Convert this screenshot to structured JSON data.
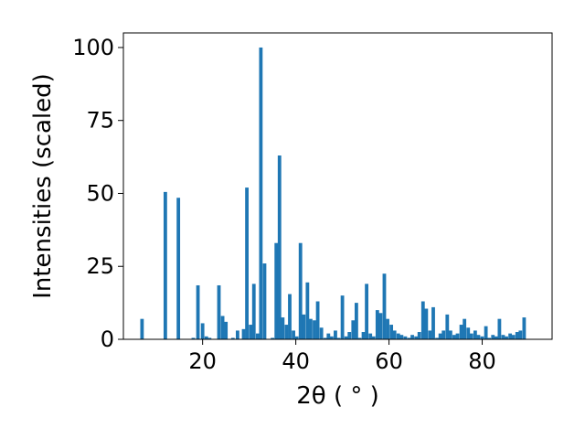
{
  "chart_data": {
    "type": "bar",
    "xlabel": "2θ ( ° )",
    "ylabel": "Intensities (scaled)",
    "xlim": [
      3,
      95
    ],
    "ylim": [
      0,
      105
    ],
    "xticks": [
      20,
      40,
      60,
      80
    ],
    "yticks": [
      0,
      25,
      50,
      75,
      100
    ],
    "bar_color": "#1f77b4",
    "bar_width": 0.75,
    "x": [
      7.0,
      12.0,
      14.8,
      18.0,
      19.0,
      20.0,
      20.8,
      21.5,
      23.5,
      24.3,
      25.0,
      26.5,
      27.5,
      28.8,
      29.5,
      30.3,
      31.0,
      31.8,
      32.5,
      33.3,
      35.0,
      35.8,
      36.5,
      37.2,
      38.0,
      38.7,
      39.5,
      40.2,
      41.0,
      41.7,
      42.5,
      43.2,
      44.0,
      44.7,
      45.5,
      46.3,
      47.0,
      47.7,
      48.5,
      49.2,
      50.0,
      50.8,
      51.5,
      52.3,
      53.0,
      53.7,
      54.5,
      55.2,
      56.0,
      56.7,
      57.5,
      58.2,
      59.0,
      59.7,
      60.5,
      61.2,
      62.0,
      62.7,
      63.5,
      64.3,
      65.0,
      65.8,
      66.5,
      67.3,
      68.0,
      68.8,
      69.5,
      70.3,
      71.0,
      71.7,
      72.5,
      73.2,
      74.0,
      74.7,
      75.5,
      76.2,
      77.0,
      77.7,
      78.5,
      79.2,
      80.0,
      80.8,
      81.5,
      82.3,
      83.0,
      83.7,
      84.5,
      85.2,
      86.0,
      86.7,
      87.5,
      88.2,
      89.0
    ],
    "values": [
      7,
      50.5,
      48.5,
      0.5,
      18.5,
      5.5,
      1,
      0.5,
      18.5,
      8,
      6,
      0.5,
      3,
      3.5,
      52,
      5,
      19,
      2,
      100,
      26,
      0.5,
      33,
      63,
      7.5,
      5,
      15.5,
      3,
      1,
      33,
      8.5,
      19.5,
      7,
      6.5,
      13,
      4,
      0.5,
      2,
      1,
      3,
      0.5,
      15,
      1,
      2.5,
      6.5,
      12.5,
      0.5,
      2.5,
      19,
      2,
      1,
      10,
      9,
      22.5,
      7,
      5,
      3,
      2,
      1.5,
      1,
      0.5,
      1.5,
      1,
      2.5,
      13,
      10.5,
      3,
      11,
      0.5,
      2,
      3,
      8.5,
      3,
      1.5,
      2,
      5,
      7,
      4,
      2,
      3,
      1.5,
      1,
      4.5,
      0.5,
      1.5,
      1,
      7,
      1.5,
      1,
      2,
      1.5,
      2.5,
      3,
      7.5
    ]
  }
}
